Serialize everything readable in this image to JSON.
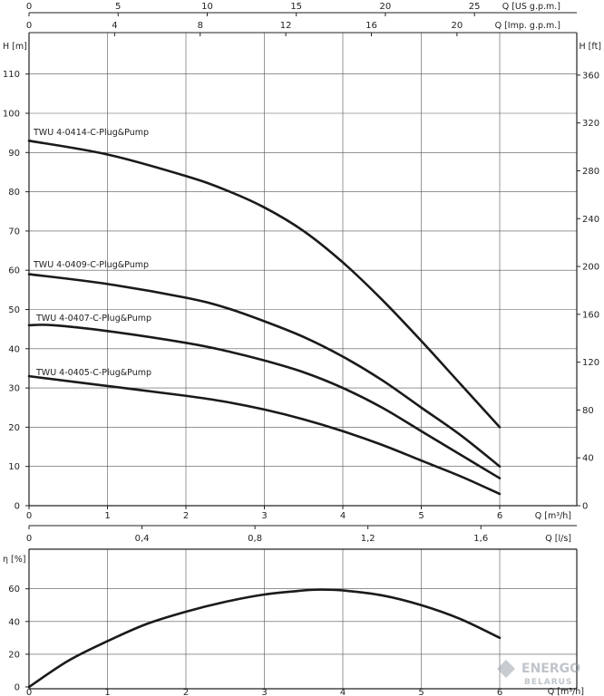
{
  "chart_data": [
    {
      "type": "line",
      "title": "",
      "xlabel": "Q [m³/h]",
      "ylabel": "H [m]",
      "xlim": [
        0,
        7
      ],
      "ylim": [
        0,
        120
      ],
      "grid": true,
      "secondary_axes": {
        "top_1": {
          "label": "Q [US g.p.m.]",
          "ticks": [
            "0",
            "5",
            "10",
            "15",
            "20",
            "25"
          ]
        },
        "top_2": {
          "label": "Q [Imp. g.p.m.]",
          "ticks": [
            "0",
            "4",
            "8",
            "12",
            "16",
            "20"
          ]
        },
        "right": {
          "label": "H [ft]",
          "ticks": [
            "0",
            "40",
            "80",
            "120",
            "160",
            "200",
            "240",
            "280",
            "320",
            "360"
          ]
        },
        "bottom_2": {
          "label": "Q [l/s]",
          "ticks": [
            "0",
            "0,4",
            "0,8",
            "1,2",
            "1,6"
          ]
        }
      },
      "x_ticks": [
        "0",
        "1",
        "2",
        "3",
        "4",
        "5",
        "6"
      ],
      "y_ticks": [
        "0",
        "10",
        "20",
        "30",
        "40",
        "50",
        "60",
        "70",
        "80",
        "90",
        "100",
        "110"
      ],
      "series": [
        {
          "name": "TWU 4-0414-C-Plug&Pump",
          "x": [
            0,
            1,
            2,
            2.5,
            3,
            3.5,
            4,
            4.5,
            5,
            5.5,
            6
          ],
          "y": [
            93,
            89.5,
            84,
            80.5,
            76,
            70,
            62,
            52.5,
            42,
            31,
            20
          ]
        },
        {
          "name": "TWU 4-0409-C-Plug&Pump",
          "x": [
            0,
            1,
            2,
            2.5,
            3,
            3.5,
            4,
            4.5,
            5,
            5.5,
            6
          ],
          "y": [
            59,
            56.5,
            53,
            50.5,
            47,
            43,
            38,
            32,
            25,
            18,
            10
          ]
        },
        {
          "name": "TWU 4-0407-C-Plug&Pump",
          "x": [
            0,
            0.3,
            1,
            2,
            2.5,
            3,
            3.5,
            4,
            4.5,
            5,
            5.5,
            6
          ],
          "y": [
            46,
            46,
            44.5,
            41.5,
            39.5,
            37,
            34,
            30,
            25,
            19,
            13,
            7
          ]
        },
        {
          "name": "TWU 4-0405-C-Plug&Pump",
          "x": [
            0,
            1,
            2,
            2.5,
            3,
            3.5,
            4,
            4.5,
            5,
            5.5,
            6
          ],
          "y": [
            33,
            30.5,
            28,
            26.5,
            24.5,
            22,
            19,
            15.5,
            11.5,
            7.5,
            3
          ]
        }
      ]
    },
    {
      "type": "line",
      "title": "",
      "xlabel": "Q [m³/h]",
      "ylabel": "η [%]",
      "xlim": [
        0,
        7
      ],
      "ylim": [
        0,
        70
      ],
      "grid": true,
      "x_ticks": [
        "0",
        "1",
        "2",
        "3",
        "4",
        "5",
        "6"
      ],
      "y_ticks": [
        "0",
        "20",
        "40",
        "60"
      ],
      "series": [
        {
          "name": "",
          "x": [
            0,
            0.5,
            1,
            1.5,
            2,
            2.5,
            3,
            3.5,
            3.7,
            4,
            4.5,
            5,
            5.5,
            6
          ],
          "y": [
            0,
            16,
            28,
            38.5,
            46,
            52,
            56.5,
            59,
            59.5,
            59,
            56,
            50,
            41.5,
            30
          ]
        }
      ]
    }
  ],
  "watermark": {
    "text": "ENERGO BELARUS"
  }
}
